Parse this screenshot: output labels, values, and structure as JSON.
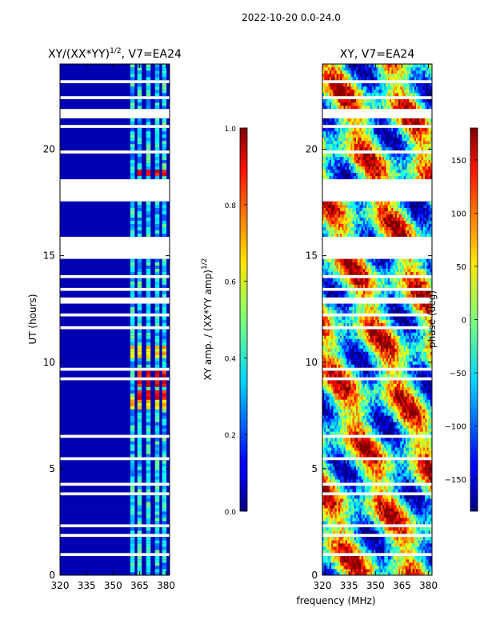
{
  "suptitle": "2022-10-20 0.0-24.0",
  "chart_data": [
    {
      "type": "heatmap",
      "title": "XY/(XX*YY)",
      "title_exponent": "1/2",
      "title_suffix": ", V7=EA24",
      "xlabel": "",
      "ylabel": "UT (hours)",
      "xlim": [
        320,
        382
      ],
      "ylim": [
        0,
        24
      ],
      "xticks": [
        320,
        335,
        350,
        365,
        380
      ],
      "yticks": [
        0,
        5,
        10,
        15,
        20
      ],
      "colorbar": {
        "label": "XY amp. / (XX*YY amp)",
        "label_exponent": "1/2",
        "range": [
          0.0,
          1.0
        ],
        "ticks": [
          "0.0",
          "0.2",
          "0.4",
          "0.6",
          "0.8",
          "1.0"
        ],
        "tick_values": [
          0.0,
          0.2,
          0.4,
          0.6,
          0.8,
          1.0
        ]
      },
      "description_values": {
        "background_level": 0.05,
        "band_level_range": [
          0.2,
          0.5
        ],
        "peak_level": 0.95,
        "band_centers_mhz": [
          361,
          365,
          370,
          375,
          379
        ],
        "band_width_mhz": 2.5,
        "high_rows_ut": [
          8.5,
          9.0,
          9.4,
          18.9
        ],
        "medium_rows_ut": [
          8.0,
          8.2,
          10.3,
          10.6
        ]
      }
    },
    {
      "type": "heatmap",
      "title": "XY, V7=EA24",
      "xlabel": "frequency (MHz)",
      "ylabel": "",
      "xlim": [
        320,
        382
      ],
      "ylim": [
        0,
        24
      ],
      "xticks": [
        320,
        335,
        350,
        365,
        380
      ],
      "yticks": [
        0,
        5,
        10,
        15,
        20
      ],
      "colorbar": {
        "label": "phase (deg)",
        "range": [
          -180,
          180
        ],
        "ticks": [
          "−150",
          "−100",
          "−50",
          "0",
          "50",
          "100",
          "150"
        ],
        "tick_values": [
          -150,
          -100,
          -50,
          0,
          50,
          100,
          150
        ]
      }
    }
  ],
  "gaps_ut": [
    [
      23.05,
      23.25
    ],
    [
      22.3,
      22.45
    ],
    [
      21.5,
      21.95
    ],
    [
      21.05,
      21.12
    ],
    [
      20.55,
      20.6
    ],
    [
      19.85,
      19.9
    ],
    [
      18.6,
      17.5
    ],
    [
      17.05,
      17.1
    ],
    [
      16.65,
      16.7
    ],
    [
      15.9,
      14.85
    ],
    [
      14.5,
      14.55
    ],
    [
      14.0,
      14.15
    ],
    [
      13.4,
      13.45
    ],
    [
      12.75,
      13.0
    ],
    [
      12.2,
      12.25
    ],
    [
      11.6,
      11.7
    ],
    [
      10.0,
      10.1
    ],
    [
      9.65,
      9.75
    ],
    [
      9.2,
      9.25
    ],
    [
      8.8,
      8.85
    ],
    [
      7.6,
      7.65
    ],
    [
      7.0,
      7.05
    ],
    [
      6.5,
      6.55
    ],
    [
      5.95,
      6.0
    ],
    [
      5.4,
      5.5
    ],
    [
      4.8,
      4.85
    ],
    [
      4.2,
      4.3
    ],
    [
      3.8,
      3.85
    ],
    [
      3.3,
      3.35
    ],
    [
      2.8,
      2.9
    ],
    [
      2.3,
      2.35
    ],
    [
      1.85,
      1.95
    ],
    [
      1.45,
      1.55
    ],
    [
      0.95,
      1.0
    ],
    [
      0.45,
      0.5
    ]
  ]
}
